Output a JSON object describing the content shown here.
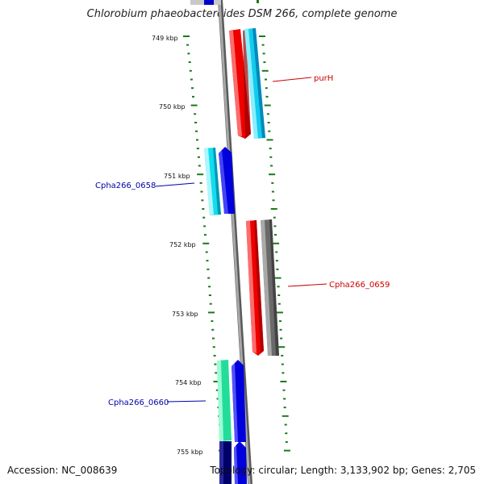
{
  "title": "Chlorobium phaeobacteroides DSM 266, complete genome",
  "accession": "Accession: NC_008639",
  "topology": "Topology: circular; Length: 3,133,902 bp; Genes: 2,705",
  "ticks": [
    "749 kbp",
    "750 kbp",
    "751 kbp",
    "752 kbp",
    "753 kbp",
    "754 kbp",
    "755 kbp"
  ],
  "gene_labels": [
    {
      "name": "purH",
      "color": "#cc0000"
    },
    {
      "name": "Cpha266_0658",
      "color": "#0000aa"
    },
    {
      "name": "Cpha266_0659",
      "color": "#cc0000"
    },
    {
      "name": "Cpha266_0660",
      "color": "#0000aa"
    }
  ],
  "colors": {
    "backbone": "#8a8a8a",
    "tick": "#1a7a1a",
    "red": "#ee0000",
    "cyan": "#11ccee",
    "blue": "#0000dd",
    "dark_blue": "#00006a",
    "gray": "#6a6a6a",
    "green": "#22dd99"
  }
}
